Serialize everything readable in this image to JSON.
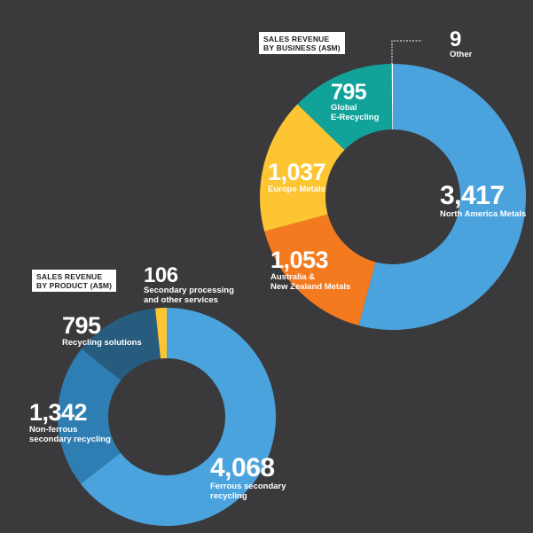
{
  "chart_data": [
    {
      "type": "pie",
      "title": "SALES REVENUE BY BUSINESS (A$M)",
      "slices": [
        {
          "value": 3417,
          "label": "North America Metals",
          "value_text": "3,417",
          "color": "#4ba3de"
        },
        {
          "value": 1053,
          "label": "Australia & New Zealand Metals",
          "value_text": "1,053",
          "color": "#f47a20"
        },
        {
          "value": 1037,
          "label": "Europe Metals",
          "value_text": "1,037",
          "color": "#fdc531"
        },
        {
          "value": 795,
          "label": "Global E-Recycling",
          "value_text": "795",
          "color": "#11a39a"
        },
        {
          "value": 9,
          "label": "Other",
          "value_text": "9",
          "color": "#ffffff"
        }
      ]
    },
    {
      "type": "pie",
      "title": "SALES REVENUE BY PRODUCT (A$M)",
      "slices": [
        {
          "value": 4068,
          "label": "Ferrous secondary recycling",
          "value_text": "4,068",
          "color": "#4ba3de"
        },
        {
          "value": 1342,
          "label": "Non-ferrous secondary recycling",
          "value_text": "1,342",
          "color": "#2e7db3"
        },
        {
          "value": 795,
          "label": "Recycling solutions",
          "value_text": "795",
          "color": "#285c7e"
        },
        {
          "value": 106,
          "label": "Secondary processing and other services",
          "value_text": "106",
          "color": "#fdc531"
        }
      ]
    }
  ],
  "headers": {
    "business_line1": "SALES REVENUE",
    "business_line2": "BY BUSINESS (A$M)",
    "product_line1": "SALES REVENUE",
    "product_line2": "BY PRODUCT (A$M)"
  },
  "labels": {
    "na_value": "3,417",
    "na_line1": "North America Metals",
    "anz_value": "1,053",
    "anz_line1": "Australia &",
    "anz_line2": "New Zealand Metals",
    "eu_value": "1,037",
    "eu_line1": "Europe Metals",
    "ger_value": "795",
    "ger_line1": "Global",
    "ger_line2": "E-Recycling",
    "other_value": "9",
    "other_line1": "Other",
    "fer_value": "4,068",
    "fer_line1": "Ferrous secondary",
    "fer_line2": "recycling",
    "nonfer_value": "1,342",
    "nonfer_line1": "Non-ferrous",
    "nonfer_line2": "secondary recycling",
    "rs_value": "795",
    "rs_line1": "Recycling solutions",
    "sp_value": "106",
    "sp_line1": "Secondary processing",
    "sp_line2": "and other services"
  }
}
